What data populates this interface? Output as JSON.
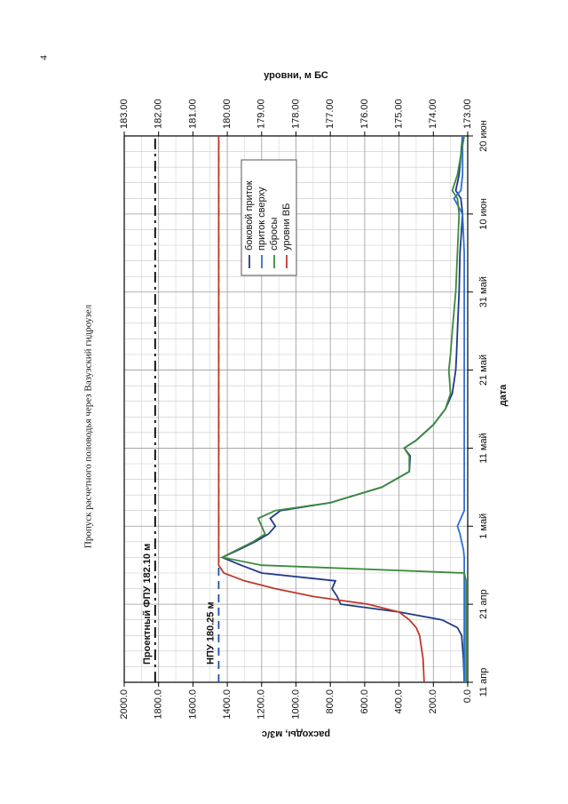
{
  "page_number": "4",
  "chart_data": {
    "type": "line",
    "title": "Пропуск расчетного половодья через Вазузский гидроузел",
    "x_label": "дата",
    "y_label": "расходы, м3/с",
    "y2_label": "уровни, м БС",
    "x": [
      0,
      3,
      6,
      7,
      8,
      9,
      10,
      11,
      12,
      13,
      14,
      15,
      16,
      17,
      18,
      19,
      20,
      21,
      22,
      23,
      25,
      27,
      29,
      30,
      31,
      33,
      35,
      37,
      40,
      42,
      45,
      50,
      55,
      60,
      62,
      63,
      65,
      70
    ],
    "xlim": [
      0,
      70
    ],
    "xticks": [
      {
        "value": 0,
        "label": "11 апр"
      },
      {
        "value": 10,
        "label": "21 апр"
      },
      {
        "value": 20,
        "label": "1 май"
      },
      {
        "value": 30,
        "label": "11 май"
      },
      {
        "value": 40,
        "label": "21 май"
      },
      {
        "value": 50,
        "label": "31 май"
      },
      {
        "value": 60,
        "label": "10 июн"
      },
      {
        "value": 70,
        "label": "20 июн"
      }
    ],
    "ylim": [
      0,
      2000
    ],
    "yticks": [
      {
        "value": 0,
        "label": "0.0"
      },
      {
        "value": 200,
        "label": "200.0"
      },
      {
        "value": 400,
        "label": "400.0"
      },
      {
        "value": 600,
        "label": "600.0"
      },
      {
        "value": 800,
        "label": "800.0"
      },
      {
        "value": 1000,
        "label": "1000.0"
      },
      {
        "value": 1200,
        "label": "1200.0"
      },
      {
        "value": 1400,
        "label": "1400.0"
      },
      {
        "value": 1600,
        "label": "1600.0"
      },
      {
        "value": 1800,
        "label": "1800.0"
      },
      {
        "value": 2000,
        "label": "2000.0"
      }
    ],
    "y2lim": [
      173,
      183
    ],
    "y2ticks": [
      {
        "value": 173,
        "label": "173.00"
      },
      {
        "value": 174,
        "label": "174.00"
      },
      {
        "value": 175,
        "label": "175.00"
      },
      {
        "value": 176,
        "label": "176.00"
      },
      {
        "value": 177,
        "label": "177.00"
      },
      {
        "value": 178,
        "label": "178.00"
      },
      {
        "value": 179,
        "label": "179.00"
      },
      {
        "value": 180,
        "label": "180.00"
      },
      {
        "value": 181,
        "label": "181.00"
      },
      {
        "value": 182,
        "label": "182.00"
      },
      {
        "value": 183,
        "label": "183.00"
      }
    ],
    "grid": true,
    "series": [
      {
        "name": "боковой приток",
        "color": "#1f3a8c",
        "values": [
          20,
          25,
          35,
          60,
          150,
          400,
          740,
          760,
          790,
          770,
          1200,
          1320,
          1430,
          1330,
          1240,
          1160,
          1120,
          1150,
          1090,
          800,
          500,
          340,
          335,
          370,
          300,
          200,
          130,
          90,
          70,
          65,
          60,
          50,
          45,
          30,
          40,
          70,
          50,
          30
        ]
      },
      {
        "name": "приток сверху",
        "color": "#2d6fd6",
        "values": [
          20,
          20,
          20,
          20,
          20,
          20,
          20,
          20,
          20,
          20,
          20,
          20,
          20,
          25,
          35,
          45,
          60,
          40,
          20,
          20,
          20,
          20,
          20,
          20,
          20,
          20,
          20,
          20,
          20,
          20,
          20,
          20,
          20,
          30,
          80,
          40,
          30,
          30
        ]
      },
      {
        "name": "сбросы",
        "color": "#3c8a3c",
        "values": [
          10,
          10,
          10,
          10,
          10,
          10,
          10,
          10,
          10,
          10,
          20,
          1200,
          1430,
          1340,
          1250,
          1180,
          1200,
          1220,
          1120,
          800,
          500,
          340,
          340,
          370,
          300,
          200,
          130,
          100,
          110,
          100,
          90,
          70,
          60,
          50,
          60,
          90,
          60,
          20
        ]
      },
      {
        "name": "уровни ВБ",
        "color": "#c0392b",
        "axis": "y2",
        "values": [
          174.27,
          174.3,
          174.4,
          174.5,
          174.7,
          175.0,
          175.9,
          177.5,
          178.6,
          179.5,
          180.1,
          180.25,
          180.25,
          180.25,
          180.25,
          180.25,
          180.25,
          180.25,
          180.25,
          180.25,
          180.25,
          180.25,
          180.25,
          180.25,
          180.25,
          180.25,
          180.25,
          180.25,
          180.25,
          180.25,
          180.25,
          180.25,
          180.25,
          180.25,
          180.25,
          180.25,
          180.25,
          180.25
        ]
      }
    ],
    "annotations": [
      {
        "text": "Проектный ФПУ 182.10 м",
        "value": 182.1,
        "axis": "y2",
        "color": "#000000",
        "style": "dashdot"
      },
      {
        "text": "НПУ 180.25 м",
        "value": 180.25,
        "axis": "y2",
        "color": "#1f4fa8",
        "style": "dashed"
      }
    ]
  }
}
